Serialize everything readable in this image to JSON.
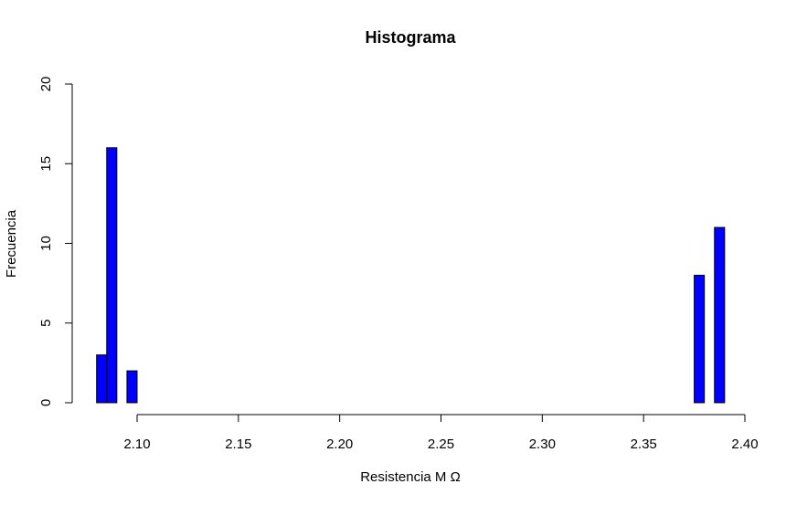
{
  "chart_data": {
    "type": "bar",
    "title": "Histograma",
    "xlabel": "Resistencia M Ω",
    "ylabel": "Frecuencia",
    "xlim": [
      2.08,
      2.39
    ],
    "ylim": [
      0,
      20
    ],
    "bin_width": 0.005,
    "bins": [
      {
        "start": 2.08,
        "end": 2.085,
        "count": 3
      },
      {
        "start": 2.085,
        "end": 2.09,
        "count": 16
      },
      {
        "start": 2.09,
        "end": 2.095,
        "count": 0
      },
      {
        "start": 2.095,
        "end": 2.1,
        "count": 2
      },
      {
        "start": 2.1,
        "end": 2.375,
        "count": 0
      },
      {
        "start": 2.375,
        "end": 2.38,
        "count": 8
      },
      {
        "start": 2.38,
        "end": 2.385,
        "count": 0
      },
      {
        "start": 2.385,
        "end": 2.39,
        "count": 11
      }
    ],
    "x_ticks": [
      {
        "value": 2.1,
        "label": "2.10"
      },
      {
        "value": 2.15,
        "label": "2.15"
      },
      {
        "value": 2.2,
        "label": "2.20"
      },
      {
        "value": 2.25,
        "label": "2.25"
      },
      {
        "value": 2.3,
        "label": "2.30"
      },
      {
        "value": 2.35,
        "label": "2.35"
      },
      {
        "value": 2.4,
        "label": "2.40"
      }
    ],
    "y_ticks": [
      {
        "value": 0,
        "label": "0"
      },
      {
        "value": 5,
        "label": "5"
      },
      {
        "value": 10,
        "label": "10"
      },
      {
        "value": 15,
        "label": "15"
      },
      {
        "value": 20,
        "label": "20"
      }
    ],
    "bar_color": "#0000ff",
    "bar_edge_color": "#000000",
    "grid": false,
    "legend": false
  }
}
